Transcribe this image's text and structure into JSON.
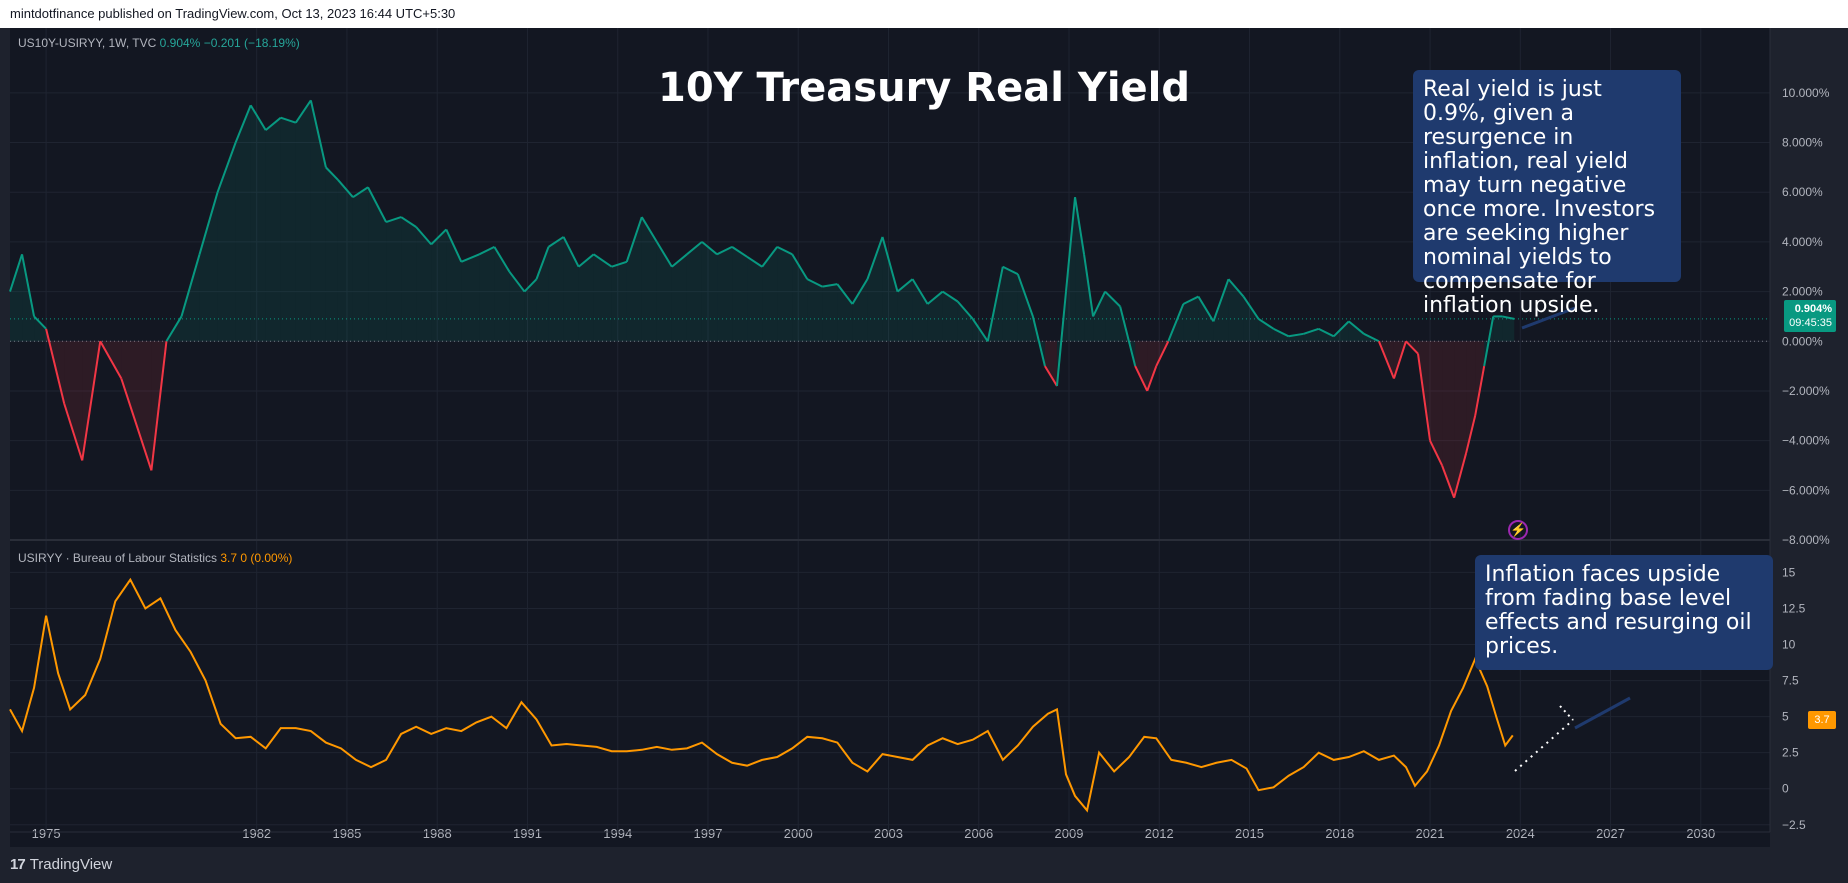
{
  "header": {
    "published": "mintdotfinance published on TradingView.com, Oct 13, 2023 16:44 UTC+5:30"
  },
  "footer": {
    "brand": "TradingView"
  },
  "top_pane": {
    "symbol": "US10Y-USIRYY, 1W, TVC",
    "value": "0.904%",
    "change": "−0.201 (−18.19%)",
    "last_tag": "0.904%",
    "countdown": "09:45:35",
    "color_up": "#089981",
    "color_down": "#f23645"
  },
  "bottom_pane": {
    "symbol": "USIRYY · Bureau of Labour Statistics",
    "value": "3.7",
    "change": "0 (0.00%)",
    "last_tag": "3.7",
    "color": "#ff9800"
  },
  "title": "10Y Treasury Real Yield",
  "notes": {
    "real_yield": "Real yield is just 0.9%, given a resurgence in inflation, real yield may turn negative once more. Investors are seeking higher nominal yields to compensate for inflation upside.",
    "inflation": "Inflation faces upside from fading base level effects and resurging oil prices."
  },
  "icons": {
    "alert": "lightning-icon"
  },
  "chart_data": [
    {
      "type": "area",
      "name": "US10Y-USIRYY",
      "title": "10Y Treasury Real Yield",
      "ylim": [
        -8,
        11
      ],
      "yticks": [
        "10.000%",
        "8.000%",
        "6.000%",
        "4.000%",
        "2.000%",
        "0.000%",
        "−2.000%",
        "−4.000%",
        "−6.000%",
        "−8.000%"
      ],
      "ytick_values": [
        10,
        8,
        6,
        4,
        2,
        0,
        -2,
        -4,
        -6,
        -8
      ],
      "x": [
        1973.8,
        1974.2,
        1974.6,
        1975.0,
        1975.6,
        1976.2,
        1976.8,
        1977.5,
        1978.5,
        1979.0,
        1979.5,
        1980.1,
        1980.7,
        1981.3,
        1981.8,
        1982.3,
        1982.8,
        1983.3,
        1983.8,
        1984.3,
        1984.7,
        1985.2,
        1985.7,
        1986.3,
        1986.8,
        1987.3,
        1987.8,
        1988.3,
        1988.8,
        1989.4,
        1989.9,
        1990.4,
        1990.9,
        1991.3,
        1991.7,
        1992.2,
        1992.7,
        1993.2,
        1993.8,
        1994.3,
        1994.8,
        1995.3,
        1995.8,
        1996.3,
        1996.8,
        1997.3,
        1997.8,
        1998.3,
        1998.8,
        1999.3,
        1999.8,
        2000.3,
        2000.8,
        2001.3,
        2001.8,
        2002.3,
        2002.8,
        2003.3,
        2003.8,
        2004.3,
        2004.8,
        2005.3,
        2005.8,
        2006.3,
        2006.8,
        2007.3,
        2007.8,
        2008.2,
        2008.6,
        2008.9,
        2009.2,
        2009.5,
        2009.8,
        2010.2,
        2010.7,
        2011.2,
        2011.6,
        2011.9,
        2012.3,
        2012.8,
        2013.3,
        2013.8,
        2014.3,
        2014.8,
        2015.3,
        2015.8,
        2016.3,
        2016.8,
        2017.3,
        2017.8,
        2018.3,
        2018.8,
        2019.3,
        2019.8,
        2020.2,
        2020.6,
        2021.0,
        2021.4,
        2021.8,
        2022.2,
        2022.5,
        2022.8,
        2023.1,
        2023.4,
        2023.8
      ],
      "values": [
        2.0,
        3.5,
        1.0,
        0.5,
        -2.5,
        -4.8,
        0.0,
        -1.5,
        -5.2,
        0.0,
        1.0,
        3.5,
        6.0,
        8.0,
        9.5,
        8.5,
        9.0,
        8.8,
        9.7,
        7.0,
        6.5,
        5.8,
        6.2,
        4.8,
        5.0,
        4.6,
        3.9,
        4.5,
        3.2,
        3.5,
        3.8,
        2.8,
        2.0,
        2.5,
        3.8,
        4.2,
        3.0,
        3.5,
        3.0,
        3.2,
        5.0,
        4.0,
        3.0,
        3.5,
        4.0,
        3.5,
        3.8,
        3.4,
        3.0,
        3.8,
        3.5,
        2.5,
        2.2,
        2.3,
        1.5,
        2.5,
        4.2,
        2.0,
        2.5,
        1.5,
        2.0,
        1.6,
        0.9,
        0.0,
        3.0,
        2.7,
        1.0,
        -1.0,
        -1.8,
        2.0,
        5.8,
        3.5,
        1.0,
        2.0,
        1.4,
        -1.0,
        -2.0,
        -1.0,
        0.0,
        1.5,
        1.8,
        0.8,
        2.5,
        1.8,
        0.9,
        0.5,
        0.2,
        0.3,
        0.5,
        0.2,
        0.8,
        0.3,
        0.0,
        -1.5,
        0.0,
        -0.5,
        -4.0,
        -5.0,
        -6.3,
        -4.5,
        -3.0,
        -1.0,
        1.0,
        1.0,
        0.9
      ]
    },
    {
      "type": "line",
      "name": "USIRYY",
      "ylim": [
        -3,
        16
      ],
      "yticks": [
        "15",
        "12.5",
        "10",
        "7.5",
        "5",
        "2.5",
        "0",
        "−2.5"
      ],
      "ytick_values": [
        15,
        12.5,
        10,
        7.5,
        5,
        2.5,
        0,
        -2.5
      ],
      "x": [
        1973.8,
        1974.2,
        1974.6,
        1975.0,
        1975.4,
        1975.8,
        1976.3,
        1976.8,
        1977.3,
        1977.8,
        1978.3,
        1978.8,
        1979.3,
        1979.8,
        1980.3,
        1980.8,
        1981.3,
        1981.8,
        1982.3,
        1982.8,
        1983.3,
        1983.8,
        1984.3,
        1984.8,
        1985.3,
        1985.8,
        1986.3,
        1986.8,
        1987.3,
        1987.8,
        1988.3,
        1988.8,
        1989.3,
        1989.8,
        1990.3,
        1990.8,
        1991.3,
        1991.8,
        1992.3,
        1992.8,
        1993.3,
        1993.8,
        1994.3,
        1994.8,
        1995.3,
        1995.8,
        1996.3,
        1996.8,
        1997.3,
        1997.8,
        1998.3,
        1998.8,
        1999.3,
        1999.8,
        2000.3,
        2000.8,
        2001.3,
        2001.8,
        2002.3,
        2002.8,
        2003.3,
        2003.8,
        2004.3,
        2004.8,
        2005.3,
        2005.8,
        2006.3,
        2006.8,
        2007.3,
        2007.8,
        2008.3,
        2008.6,
        2008.9,
        2009.2,
        2009.6,
        2010.0,
        2010.5,
        2011.0,
        2011.5,
        2011.9,
        2012.4,
        2012.9,
        2013.4,
        2013.9,
        2014.4,
        2014.9,
        2015.3,
        2015.8,
        2016.3,
        2016.8,
        2017.3,
        2017.8,
        2018.3,
        2018.8,
        2019.3,
        2019.8,
        2020.2,
        2020.5,
        2020.9,
        2021.3,
        2021.7,
        2022.1,
        2022.5,
        2022.9,
        2023.2,
        2023.5,
        2023.75
      ],
      "values": [
        5.5,
        4.0,
        7.0,
        12.0,
        8.0,
        5.5,
        6.5,
        9.0,
        13.0,
        14.5,
        12.5,
        13.2,
        11.0,
        9.5,
        7.5,
        4.5,
        3.5,
        3.6,
        2.8,
        4.2,
        4.2,
        4.0,
        3.2,
        2.8,
        2.0,
        1.5,
        2.0,
        3.8,
        4.3,
        3.8,
        4.2,
        4.0,
        4.6,
        5.0,
        4.2,
        6.0,
        4.8,
        3.0,
        3.1,
        3.0,
        2.9,
        2.6,
        2.6,
        2.7,
        2.9,
        2.7,
        2.8,
        3.2,
        2.4,
        1.8,
        1.6,
        2.0,
        2.2,
        2.8,
        3.6,
        3.5,
        3.2,
        1.8,
        1.2,
        2.4,
        2.2,
        2.0,
        3.0,
        3.5,
        3.1,
        3.4,
        4.0,
        2.0,
        3.0,
        4.3,
        5.2,
        5.5,
        1.0,
        -0.5,
        -1.5,
        2.5,
        1.2,
        2.2,
        3.6,
        3.5,
        2.0,
        1.8,
        1.5,
        1.8,
        2.0,
        1.4,
        -0.1,
        0.1,
        0.9,
        1.5,
        2.5,
        2.0,
        2.2,
        2.6,
        2.0,
        2.3,
        1.5,
        0.2,
        1.2,
        3.0,
        5.4,
        7.0,
        9.0,
        7.1,
        5.0,
        3.0,
        3.7
      ]
    }
  ],
  "x_axis_ticks": [
    "1975",
    "1982",
    "1985",
    "1988",
    "1991",
    "1994",
    "1997",
    "2000",
    "2003",
    "2006",
    "2009",
    "2012",
    "2015",
    "2018",
    "2021",
    "2024",
    "2027",
    "2030"
  ],
  "x_axis_values": [
    1975,
    1982,
    1985,
    1988,
    1991,
    1994,
    1997,
    2000,
    2003,
    2006,
    2009,
    2012,
    2015,
    2018,
    2021,
    2024,
    2027,
    2030
  ]
}
